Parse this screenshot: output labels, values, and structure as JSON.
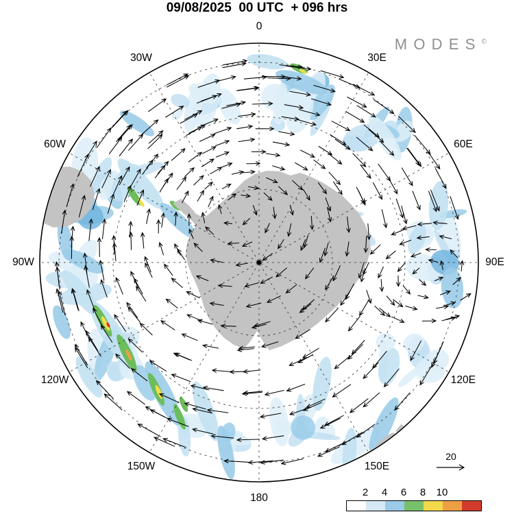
{
  "header": {
    "title": "09/08/2025  00 UTC  + 096 hrs"
  },
  "branding": {
    "logo_text": "MODES",
    "logo_superscript": "©"
  },
  "map": {
    "longitude_labels": [
      "0",
      "30E",
      "60E",
      "90E",
      "120E",
      "150E",
      "180",
      "150W",
      "120W",
      "90W",
      "60W",
      "30W"
    ],
    "colors": {
      "land": "#c3c3c3",
      "vector": "#000000",
      "shading_light": "#ddeef8",
      "shading_mid": "#c2e1f2",
      "shading_deep": "#9bcce9",
      "shading_deepest": "#74b6df",
      "jet_green": "#6cbd5c",
      "jet_yellow": "#f2de4e",
      "jet_orange": "#ef9f43",
      "jet_red": "#d23b2c"
    }
  },
  "legend": {
    "reference_vector_label": "20",
    "colorbar_tick_labels": [
      "2",
      "4",
      "6",
      "8",
      "10"
    ],
    "colorbar_colors": [
      "#ffffff",
      "#d5e9f6",
      "#9ccae9",
      "#79c06c",
      "#f2d84b",
      "#ef9f43",
      "#d23b2c"
    ]
  },
  "chart_data": {
    "type": "heatmap",
    "subtype": "polar-vector-field-map",
    "projection": "south-polar-stereographic",
    "title": "09/08/2025 00 UTC + 096 hrs",
    "longitude_ring_labels": [
      "0",
      "30E",
      "60E",
      "90E",
      "120E",
      "150E",
      "180",
      "150W",
      "120W",
      "90W",
      "60W",
      "30W"
    ],
    "colorbar": {
      "tick_values": [
        2,
        4,
        6,
        8,
        10
      ],
      "colors": [
        "#ffffff",
        "#d5e9f6",
        "#9ccae9",
        "#79c06c",
        "#f2d84b",
        "#ef9f43",
        "#d23b2c"
      ]
    },
    "reference_vector_value": 20,
    "legend_position": "bottom-right",
    "branding": "MODES©"
  }
}
